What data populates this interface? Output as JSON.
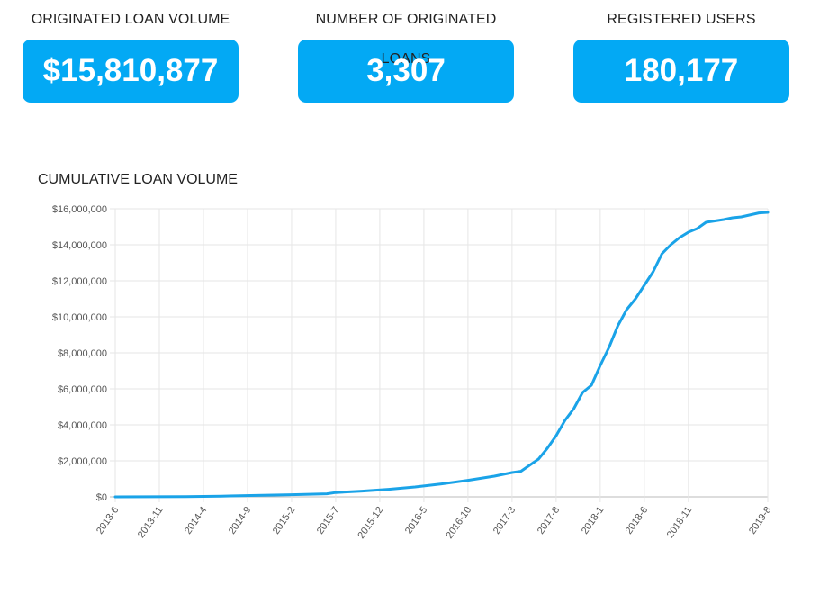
{
  "kpis": [
    {
      "label": "ORIGINATED LOAN VOLUME",
      "value": "$15,810,877"
    },
    {
      "label": "NUMBER OF ORIGINATED LOANS",
      "value": "3,307"
    },
    {
      "label": "REGISTERED USERS",
      "value": "180,177"
    }
  ],
  "colors": {
    "accent": "#03a9f4",
    "line": "#1aa3e8",
    "grid": "#e6e6e6",
    "axis": "#bbbbbb"
  },
  "chart_data": {
    "type": "line",
    "title": "CUMULATIVE LOAN VOLUME",
    "xlabel": "",
    "ylabel": "",
    "ylim": [
      0,
      16000000
    ],
    "yticks": [
      0,
      2000000,
      4000000,
      6000000,
      8000000,
      10000000,
      12000000,
      14000000,
      16000000
    ],
    "ytick_labels": [
      "$0",
      "$2,000,000",
      "$4,000,000",
      "$6,000,000",
      "$8,000,000",
      "$10,000,000",
      "$12,000,000",
      "$14,000,000",
      "$16,000,000"
    ],
    "xtick_labels": [
      "2013-6",
      "2013-11",
      "2014-4",
      "2014-9",
      "2015-2",
      "2015-7",
      "2015-12",
      "2016-5",
      "2016-10",
      "2017-3",
      "2017-8",
      "2018-1",
      "2018-6",
      "2018-11",
      "2019-8"
    ],
    "grid": true,
    "legend": "none",
    "series": [
      {
        "x": [
          "2013-6",
          "2013-10",
          "2014-2",
          "2014-6",
          "2014-10",
          "2015-2",
          "2015-6",
          "2015-7",
          "2015-10",
          "2016-1",
          "2016-4",
          "2016-7",
          "2016-10",
          "2017-1",
          "2017-3",
          "2017-4",
          "2017-6",
          "2017-7",
          "2017-8",
          "2017-9",
          "2017-10",
          "2017-11",
          "2017-12",
          "2018-1",
          "2018-2",
          "2018-3",
          "2018-4",
          "2018-5",
          "2018-6",
          "2018-7",
          "2018-8",
          "2018-9",
          "2018-10",
          "2018-11",
          "2018-12",
          "2019-1",
          "2019-3",
          "2019-4",
          "2019-5",
          "2019-7",
          "2019-8"
        ],
        "values": [
          0,
          5000,
          15000,
          40000,
          80000,
          120000,
          170000,
          240000,
          320000,
          420000,
          550000,
          720000,
          920000,
          1150000,
          1350000,
          1420000,
          2100000,
          2700000,
          3400000,
          4250000,
          4900000,
          5800000,
          6200000,
          7300000,
          8300000,
          9500000,
          10400000,
          11000000,
          11750000,
          12500000,
          13500000,
          14000000,
          14400000,
          14700000,
          14900000,
          15250000,
          15400000,
          15500000,
          15550000,
          15770000,
          15800000
        ]
      }
    ]
  }
}
